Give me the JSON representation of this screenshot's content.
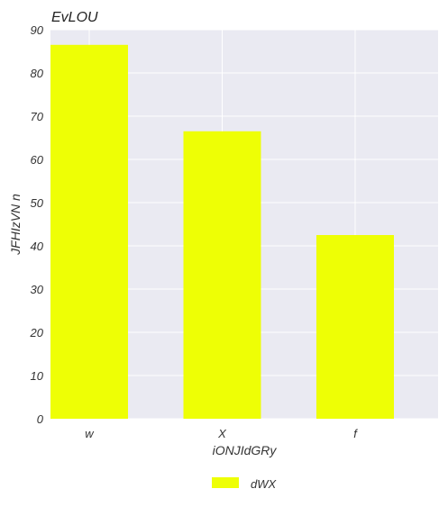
{
  "chart_data": {
    "type": "bar",
    "title": "EvLOU",
    "xlabel": "iONJIdGRy",
    "ylabel": "JFHIzVN  n",
    "categories": [
      "w",
      "X",
      "f"
    ],
    "series": [
      {
        "name": "dWX",
        "values": [
          86.5,
          66.5,
          42.5
        ]
      }
    ],
    "ylim": [
      0,
      90
    ],
    "yticks": [
      0,
      10,
      20,
      30,
      40,
      50,
      60,
      70,
      80,
      90
    ],
    "grid": true,
    "legend_position": "bottom-center",
    "colors": {
      "bar": "#eeff05",
      "plot_background": "#eaeaf2",
      "grid": "#ffffff"
    }
  }
}
